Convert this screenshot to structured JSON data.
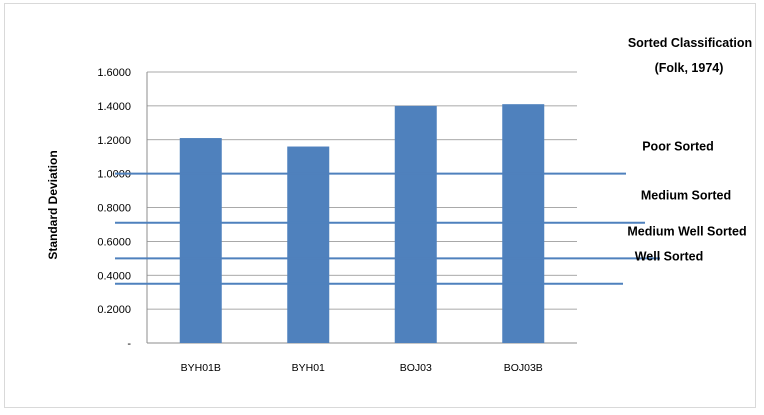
{
  "chart_data": {
    "type": "bar",
    "categories": [
      "BYH01B",
      "BYH01",
      "BOJ03",
      "BOJ03B"
    ],
    "values": [
      1.21,
      1.16,
      1.4,
      1.41
    ],
    "ylabel": "Standard Deviation",
    "xlabel": "",
    "ylim": [
      0,
      1.6
    ],
    "yticks": [
      "-",
      "0.2000",
      "0.4000",
      "0.6000",
      "0.8000",
      "1.0000",
      "1.2000",
      "1.4000",
      "1.6000"
    ],
    "grid": true,
    "bar_color": "#4F81BD",
    "classification": {
      "header": [
        "Sorted Classification",
        "(Folk, 1974)"
      ],
      "line_color": "#4F81BD",
      "classes": [
        {
          "label": "Poor Sorted",
          "value": 1.0
        },
        {
          "label": "Medium Sorted",
          "value": 0.71
        },
        {
          "label": "Medium Well Sorted",
          "value": 0.5
        },
        {
          "label": "Well Sorted",
          "value": 0.35
        }
      ]
    }
  }
}
